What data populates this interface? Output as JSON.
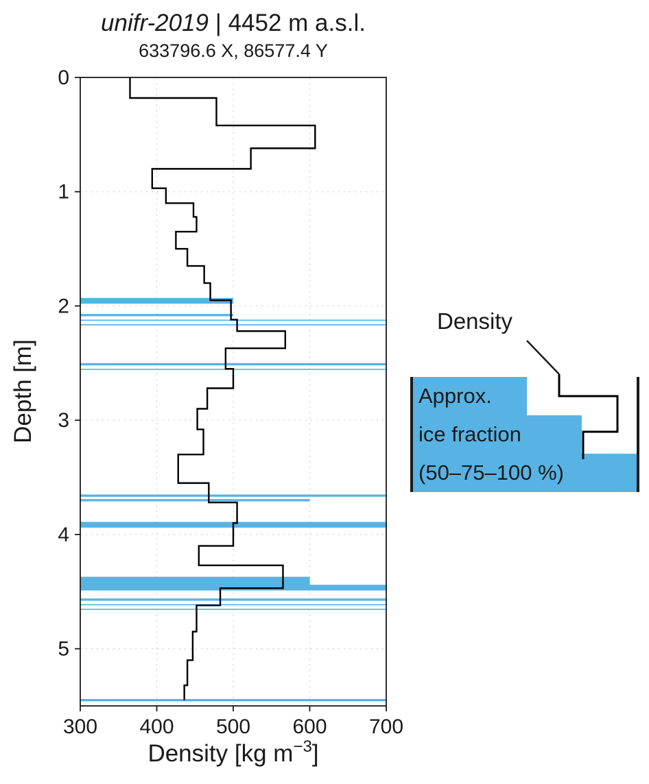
{
  "chart_data": {
    "type": "step",
    "title_italic": "unifr-2019",
    "title_rest": " | 4452 m a.s.l.",
    "subtitle": "633796.6 X, 86577.4 Y",
    "xlabel": "Density [kg m⁻³]",
    "xlabel_parts": {
      "main": "Density [kg m",
      "sup": "−3",
      "end": "]"
    },
    "ylabel": "Depth [m]",
    "xlim": [
      300,
      700
    ],
    "ylim": [
      0,
      5.5
    ],
    "y_inverted": true,
    "xticks": [
      300,
      400,
      500,
      600,
      700
    ],
    "yticks": [
      0,
      1,
      2,
      3,
      4,
      5
    ],
    "grid": "dotted",
    "line_color": "#000000",
    "series": [
      {
        "name": "Density",
        "units": "kg m-3",
        "steps": [
          {
            "d0": 0.0,
            "d1": 0.18,
            "rho": 365
          },
          {
            "d0": 0.18,
            "d1": 0.42,
            "rho": 478
          },
          {
            "d0": 0.42,
            "d1": 0.62,
            "rho": 607
          },
          {
            "d0": 0.62,
            "d1": 0.8,
            "rho": 523
          },
          {
            "d0": 0.8,
            "d1": 0.97,
            "rho": 394
          },
          {
            "d0": 0.97,
            "d1": 1.1,
            "rho": 412
          },
          {
            "d0": 1.1,
            "d1": 1.22,
            "rho": 448
          },
          {
            "d0": 1.22,
            "d1": 1.35,
            "rho": 452
          },
          {
            "d0": 1.35,
            "d1": 1.5,
            "rho": 425
          },
          {
            "d0": 1.5,
            "d1": 1.65,
            "rho": 440
          },
          {
            "d0": 1.65,
            "d1": 1.8,
            "rho": 462
          },
          {
            "d0": 1.8,
            "d1": 1.95,
            "rho": 470
          },
          {
            "d0": 1.95,
            "d1": 2.12,
            "rho": 497
          },
          {
            "d0": 2.12,
            "d1": 2.22,
            "rho": 505
          },
          {
            "d0": 2.22,
            "d1": 2.37,
            "rho": 568
          },
          {
            "d0": 2.37,
            "d1": 2.55,
            "rho": 490
          },
          {
            "d0": 2.55,
            "d1": 2.72,
            "rho": 500
          },
          {
            "d0": 2.72,
            "d1": 2.9,
            "rho": 466
          },
          {
            "d0": 2.9,
            "d1": 3.08,
            "rho": 453
          },
          {
            "d0": 3.08,
            "d1": 3.3,
            "rho": 461
          },
          {
            "d0": 3.3,
            "d1": 3.55,
            "rho": 428
          },
          {
            "d0": 3.55,
            "d1": 3.72,
            "rho": 468
          },
          {
            "d0": 3.72,
            "d1": 3.9,
            "rho": 505
          },
          {
            "d0": 3.9,
            "d1": 4.1,
            "rho": 500
          },
          {
            "d0": 4.1,
            "d1": 4.27,
            "rho": 455
          },
          {
            "d0": 4.27,
            "d1": 4.47,
            "rho": 565
          },
          {
            "d0": 4.47,
            "d1": 4.62,
            "rho": 483
          },
          {
            "d0": 4.62,
            "d1": 4.85,
            "rho": 452
          },
          {
            "d0": 4.85,
            "d1": 5.1,
            "rho": 447
          },
          {
            "d0": 5.1,
            "d1": 5.32,
            "rho": 440
          },
          {
            "d0": 5.32,
            "d1": 5.45,
            "rho": 436
          }
        ]
      }
    ],
    "ice_layers": {
      "name": "Approx. ice fraction",
      "color": "#57B3E3",
      "fraction_to_density_extent": {
        "50": 500,
        "75": 600,
        "100": 700
      },
      "layers": [
        {
          "top": 1.93,
          "bottom": 1.98,
          "fraction": 50
        },
        {
          "top": 2.07,
          "bottom": 2.09,
          "fraction": 50
        },
        {
          "top": 2.12,
          "bottom": 2.13,
          "fraction": 100
        },
        {
          "top": 2.16,
          "bottom": 2.17,
          "fraction": 100
        },
        {
          "top": 2.5,
          "bottom": 2.52,
          "fraction": 100
        },
        {
          "top": 2.55,
          "bottom": 2.56,
          "fraction": 100
        },
        {
          "top": 3.65,
          "bottom": 3.67,
          "fraction": 100
        },
        {
          "top": 3.69,
          "bottom": 3.71,
          "fraction": 75
        },
        {
          "top": 3.89,
          "bottom": 3.94,
          "fraction": 100
        },
        {
          "top": 4.37,
          "bottom": 4.47,
          "fraction": 75
        },
        {
          "top": 4.44,
          "bottom": 4.49,
          "fraction": 100
        },
        {
          "top": 4.56,
          "bottom": 4.58,
          "fraction": 100
        },
        {
          "top": 4.61,
          "bottom": 4.62,
          "fraction": 100
        },
        {
          "top": 4.65,
          "bottom": 4.66,
          "fraction": 100
        },
        {
          "top": 5.44,
          "bottom": 5.46,
          "fraction": 100
        }
      ]
    }
  },
  "legend": {
    "density_label": "Density",
    "ice_lines": [
      "Approx.",
      "ice fraction",
      "(50–75–100 %)"
    ]
  }
}
